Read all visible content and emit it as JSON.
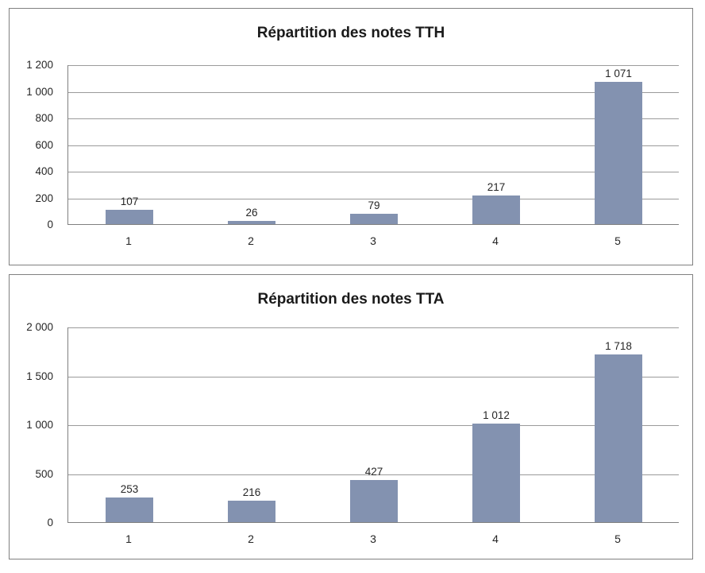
{
  "page_background": "#ffffff",
  "chart_data": [
    {
      "type": "bar",
      "title": "Répartition des notes TTH",
      "categories": [
        "1",
        "2",
        "3",
        "4",
        "5"
      ],
      "values": [
        107,
        26,
        79,
        217,
        1071
      ],
      "value_labels": [
        "107",
        "26",
        "79",
        "217",
        "1 071"
      ],
      "xlabel": "",
      "ylabel": "",
      "ylim": [
        0,
        1200
      ],
      "ytick_values": [
        0,
        200,
        400,
        600,
        800,
        1000,
        1200
      ],
      "ytick_labels": [
        "0",
        "200",
        "400",
        "600",
        "800",
        "1 000",
        "1 200"
      ],
      "grid": "horizontal",
      "legend": "none",
      "bar_color": "#8392b0",
      "gridline_color": "#9b9b9b",
      "axis_color": "#808080"
    },
    {
      "type": "bar",
      "title": "Répartition des notes TTA",
      "categories": [
        "1",
        "2",
        "3",
        "4",
        "5"
      ],
      "values": [
        253,
        216,
        427,
        1012,
        1718
      ],
      "value_labels": [
        "253",
        "216",
        "427",
        "1 012",
        "1 718"
      ],
      "xlabel": "",
      "ylabel": "",
      "ylim": [
        0,
        2000
      ],
      "ytick_values": [
        0,
        500,
        1000,
        1500,
        2000
      ],
      "ytick_labels": [
        "0",
        "500",
        "1 000",
        "1 500",
        "2 000"
      ],
      "grid": "horizontal",
      "legend": "none",
      "bar_color": "#8392b0",
      "gridline_color": "#9b9b9b",
      "axis_color": "#808080"
    }
  ]
}
